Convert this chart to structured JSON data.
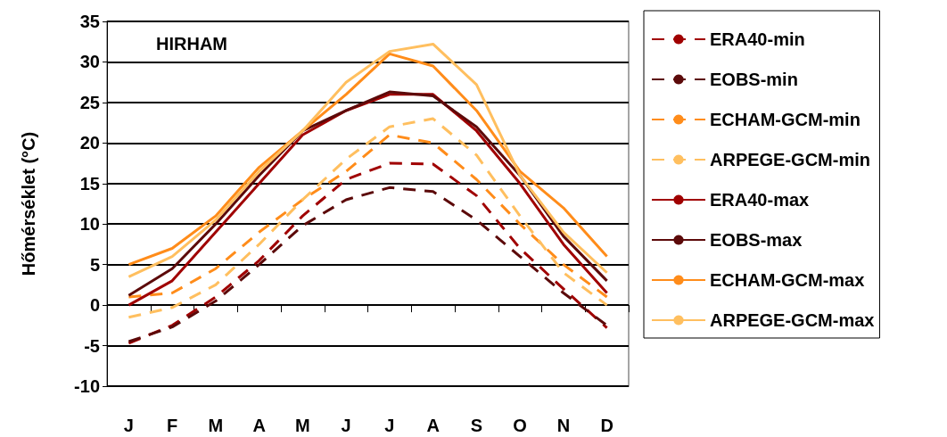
{
  "chart_data": {
    "type": "line",
    "title": "HIRHAM",
    "ylabel": "Hőmérséklet (°C)",
    "categories": [
      "J",
      "F",
      "M",
      "A",
      "M",
      "J",
      "J",
      "A",
      "S",
      "O",
      "N",
      "D"
    ],
    "ylim": [
      -10,
      35
    ],
    "yticks": [
      -10,
      -5,
      0,
      5,
      10,
      15,
      20,
      25,
      30,
      35
    ],
    "grid": "y",
    "legend": "right",
    "marker": "none",
    "series": [
      {
        "name": "ERA40-min",
        "color": "#a00000",
        "line_style": "dashed",
        "values": [
          -4.7,
          -2.5,
          1,
          5.5,
          11,
          15.5,
          17.5,
          17.4,
          13.5,
          7,
          2,
          -2.8
        ]
      },
      {
        "name": "EOBS-min",
        "color": "#5c0a0a",
        "line_style": "dashed",
        "values": [
          -4.5,
          -2.7,
          0.5,
          5,
          9.8,
          13,
          14.5,
          14,
          10.5,
          6,
          1.5,
          -2.5
        ]
      },
      {
        "name": "ECHAM-GCM-min",
        "color": "#ff8c1a",
        "line_style": "dashed",
        "values": [
          1,
          1.5,
          4.5,
          9,
          13,
          16.5,
          21,
          20,
          15.5,
          10,
          5,
          1
        ]
      },
      {
        "name": "ARPEGE-GCM-min",
        "color": "#ffbf5f",
        "line_style": "dashed",
        "values": [
          -1.5,
          -0.3,
          2.5,
          7.5,
          13,
          18,
          22,
          23,
          18.5,
          11,
          4,
          0
        ]
      },
      {
        "name": "ERA40-max",
        "color": "#a00000",
        "line_style": "solid",
        "values": [
          0,
          3,
          9,
          15,
          21,
          24,
          26,
          26,
          21.5,
          15,
          7.5,
          1.5
        ]
      },
      {
        "name": "EOBS-max",
        "color": "#5c0a0a",
        "line_style": "solid",
        "values": [
          1.2,
          4.5,
          10,
          16,
          21.5,
          24,
          26.3,
          25.8,
          22,
          16,
          8.5,
          3
        ]
      },
      {
        "name": "ECHAM-GCM-max",
        "color": "#ff8c1a",
        "line_style": "solid",
        "values": [
          5,
          7,
          11,
          17,
          21.5,
          26,
          31,
          29.5,
          24,
          16.5,
          12,
          6
        ]
      },
      {
        "name": "ARPEGE-GCM-max",
        "color": "#ffbf5f",
        "line_style": "solid",
        "values": [
          3.5,
          6,
          10.5,
          16.5,
          21.5,
          27.5,
          31.3,
          32.2,
          27.2,
          16,
          9,
          4
        ]
      }
    ]
  }
}
